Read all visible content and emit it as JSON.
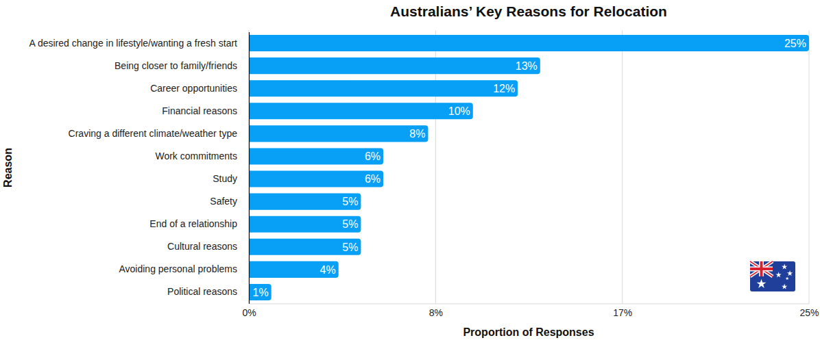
{
  "chart_data": {
    "type": "bar",
    "orientation": "horizontal",
    "title": "Australians’ Key Reasons for Relocation",
    "xlabel": "Proportion of Responses",
    "ylabel": "Reason",
    "categories": [
      "A desired change in lifestyle/wanting a fresh start",
      "Being closer to family/friends",
      "Career opportunities",
      "Financial reasons",
      "Craving a different climate/weather type",
      "Work commitments",
      "Study",
      "Safety",
      "End of a relationship",
      "Cultural reasons",
      "Avoiding personal problems",
      "Political reasons"
    ],
    "values": [
      25,
      13,
      12,
      10,
      8,
      6,
      6,
      5,
      5,
      5,
      4,
      1
    ],
    "value_labels": [
      "25%",
      "13%",
      "12%",
      "10%",
      "8%",
      "6%",
      "6%",
      "5%",
      "5%",
      "5%",
      "4%",
      "1%"
    ],
    "color": "#089ff7",
    "xlim": [
      0,
      25
    ],
    "xticks": [
      {
        "value": 0,
        "label": "0%"
      },
      {
        "value": 8.333,
        "label": "8%"
      },
      {
        "value": 16.667,
        "label": "17%"
      },
      {
        "value": 25,
        "label": "25%"
      }
    ],
    "grid": true,
    "data_labels": true
  }
}
